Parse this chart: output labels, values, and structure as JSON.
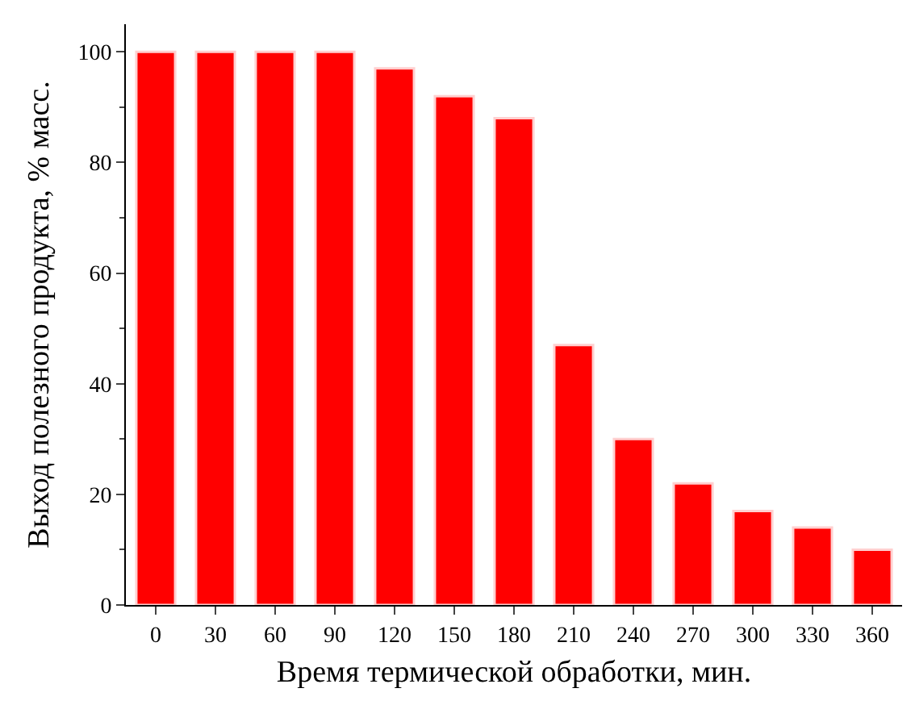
{
  "chart_data": {
    "type": "bar",
    "xlabel": "Время термической обработки, мин.",
    "ylabel": "Выход полезного продукта, % масс.",
    "categories": [
      "0",
      "30",
      "60",
      "90",
      "120",
      "150",
      "180",
      "210",
      "240",
      "270",
      "300",
      "330",
      "360"
    ],
    "values": [
      100,
      100,
      100,
      100,
      97,
      92,
      88,
      47,
      30,
      22,
      17,
      14,
      10
    ],
    "color": "#ff0000",
    "ylim": [
      0,
      105
    ],
    "yticks": [
      0,
      20,
      40,
      60,
      80,
      100
    ],
    "grid": false,
    "legend": false
  }
}
